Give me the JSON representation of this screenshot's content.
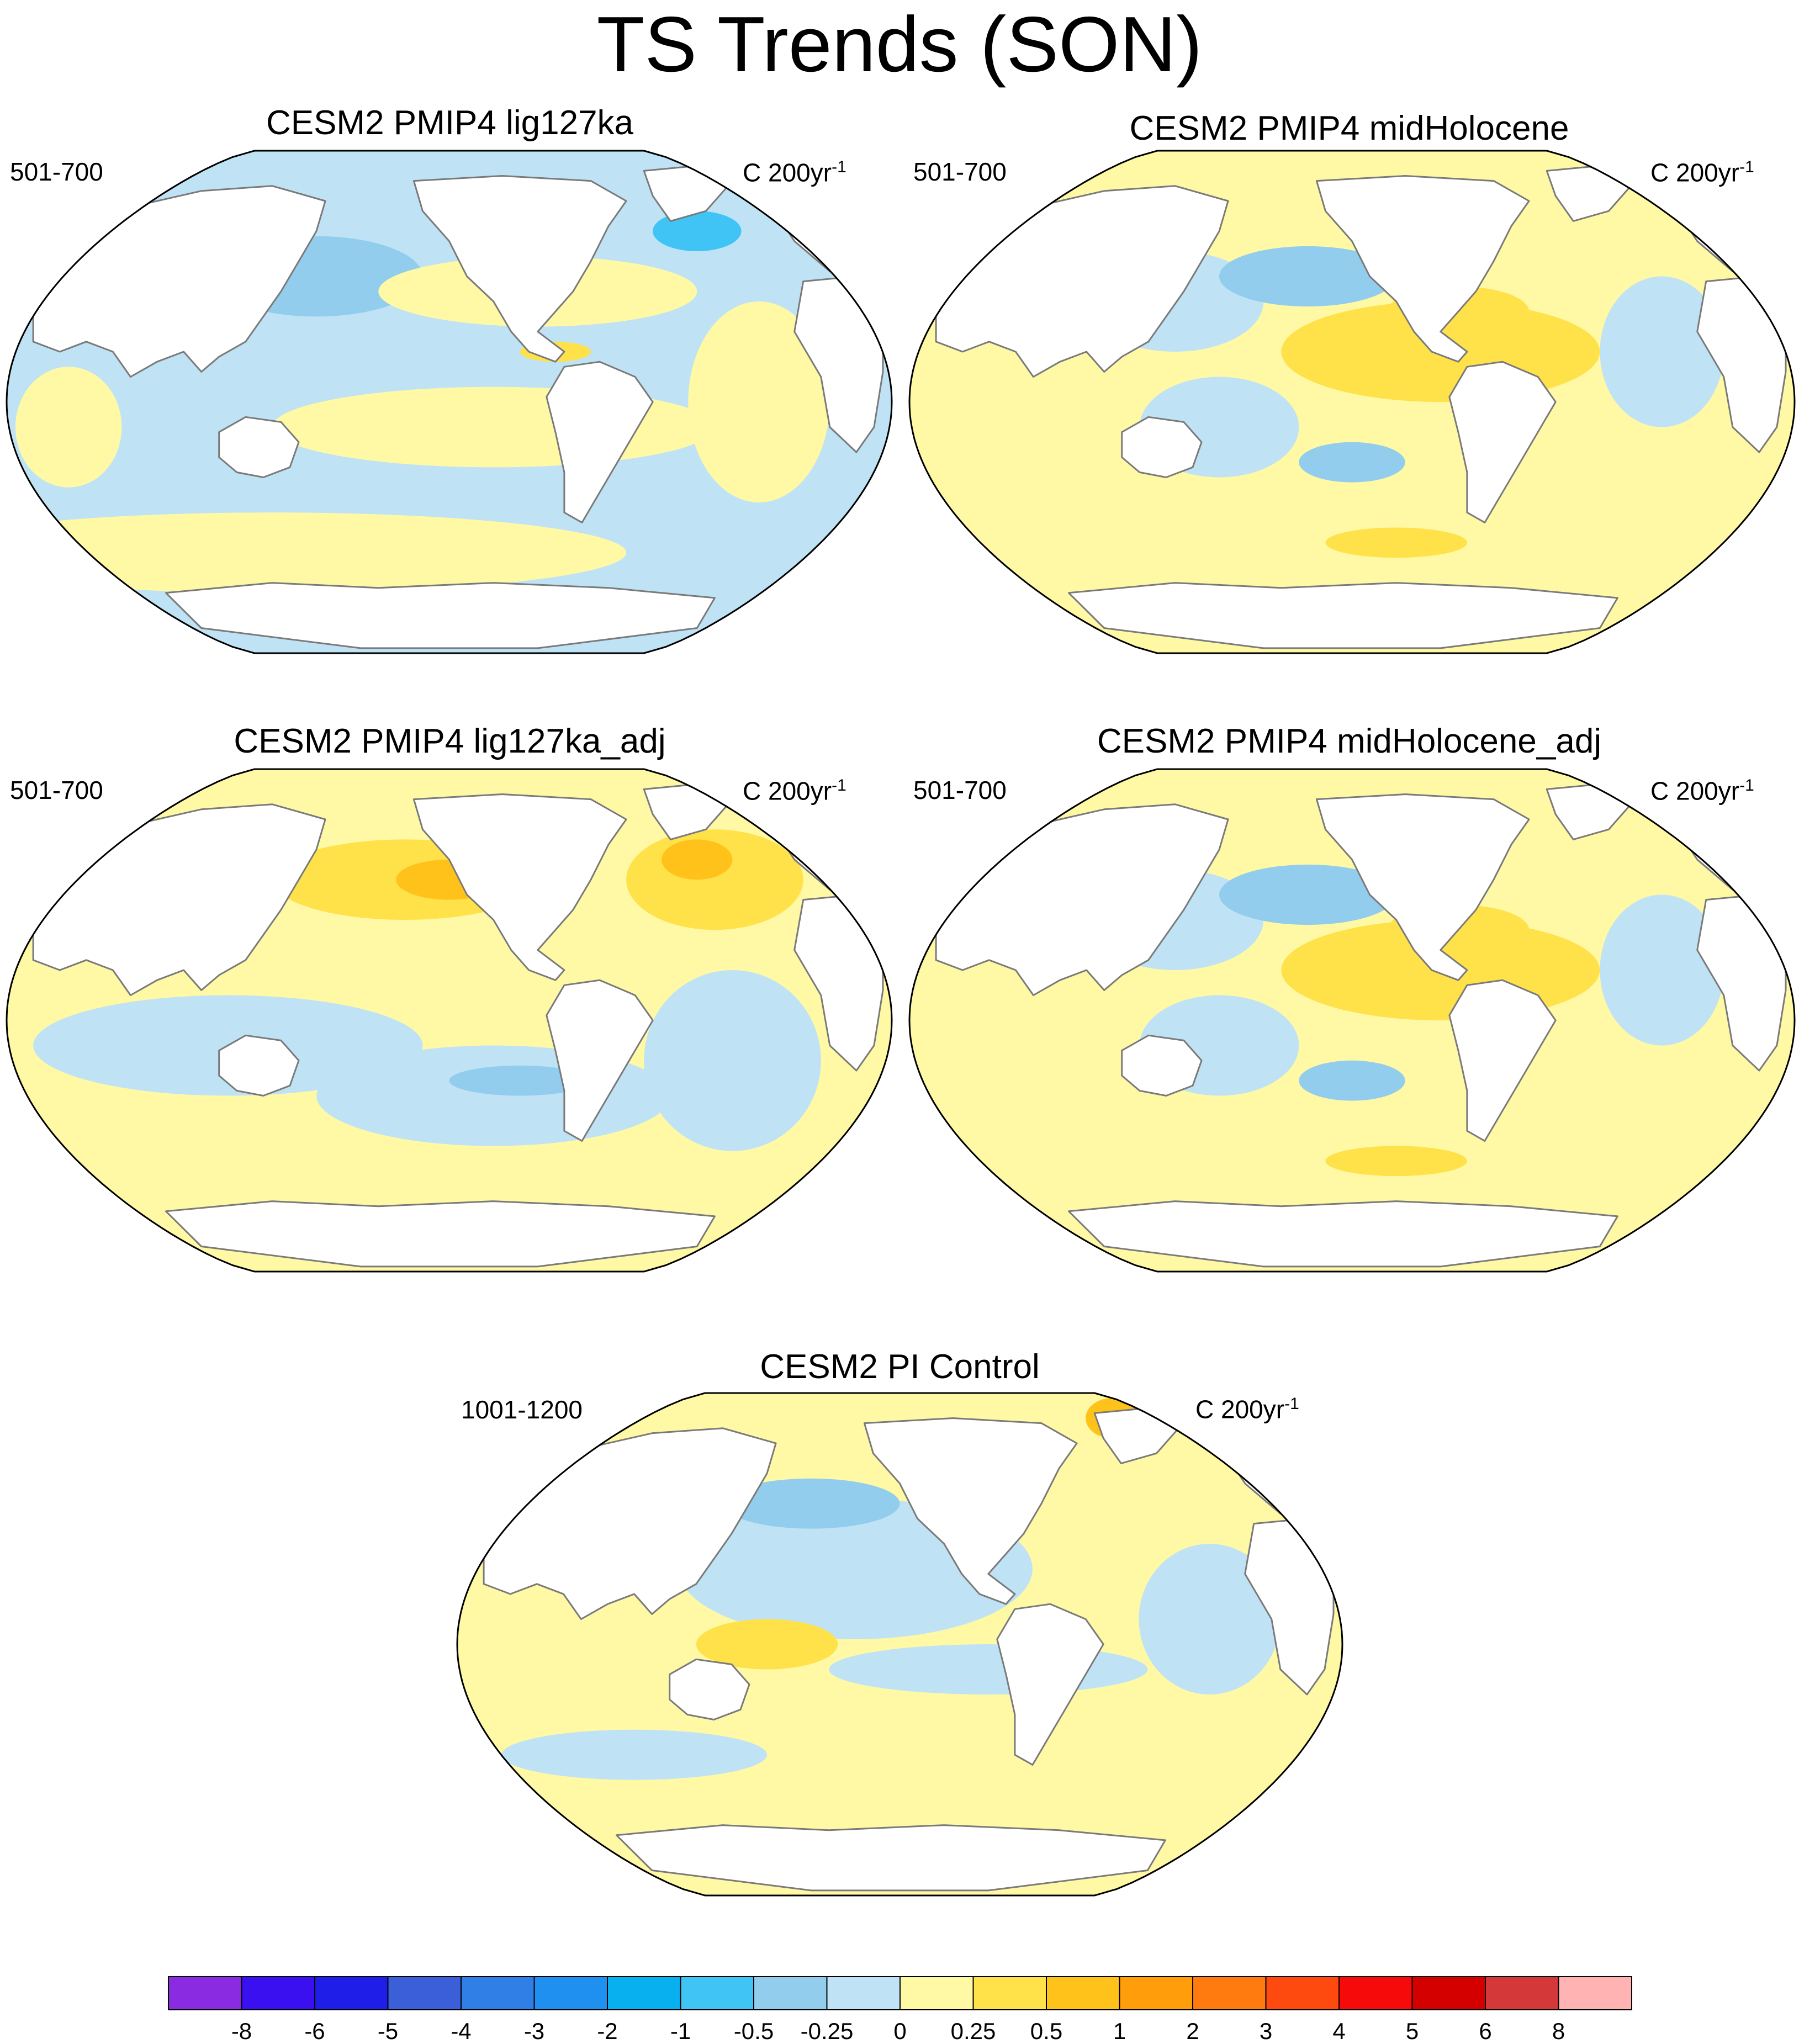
{
  "figure": {
    "title": "TS Trends (SON)"
  },
  "panels": [
    {
      "id": "lig127ka",
      "title": "CESM2 PMIP4 lig127ka",
      "years": "501-700",
      "units_base": "C 200yr",
      "units_exp": "-1"
    },
    {
      "id": "midHolocene",
      "title": "CESM2 PMIP4 midHolocene",
      "years": "501-700",
      "units_base": "C 200yr",
      "units_exp": "-1"
    },
    {
      "id": "lig127ka_adj",
      "title": "CESM2 PMIP4 lig127ka_adj",
      "years": "501-700",
      "units_base": "C 200yr",
      "units_exp": "-1"
    },
    {
      "id": "midHolocene_adj",
      "title": "CESM2 PMIP4 midHolocene_adj",
      "years": "501-700",
      "units_base": "C 200yr",
      "units_exp": "-1"
    },
    {
      "id": "piControl",
      "title": "CESM2 PI Control",
      "years": "1001-1200",
      "units_base": "C 200yr",
      "units_exp": "-1"
    }
  ],
  "colorbar": {
    "colors": [
      "#8a2be2",
      "#3a10f0",
      "#1e1ee8",
      "#3a5fd9",
      "#2f7fe6",
      "#1f8ff0",
      "#08b0f0",
      "#40c4f5",
      "#93cdee",
      "#bfe3f5",
      "#fff9a6",
      "#ffe14a",
      "#ffc21a",
      "#ff9d0a",
      "#ff7b0f",
      "#ff4a0f",
      "#f70a0a",
      "#d40000",
      "#d43838",
      "#ffb3b3"
    ],
    "levels": [
      "-8",
      "-6",
      "-5",
      "-4",
      "-3",
      "-2",
      "-1",
      "-0.5",
      "-0.25",
      "0",
      "0.25",
      "0.5",
      "1",
      "2",
      "3",
      "4",
      "5",
      "6",
      "8"
    ]
  }
}
